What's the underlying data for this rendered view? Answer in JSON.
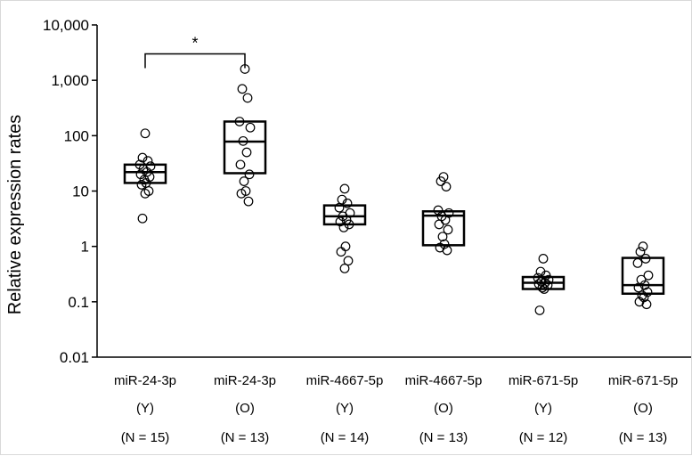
{
  "chart_data": {
    "type": "scatter",
    "subtype": "dot-plot with box (median and interquartile range)",
    "y_scale": "log",
    "ylabel": "Relative expression rates",
    "ylim": [
      0.01,
      10000
    ],
    "y_ticks": [
      {
        "value": 0.01,
        "label": "0.01"
      },
      {
        "value": 0.1,
        "label": "0.1"
      },
      {
        "value": 1,
        "label": "1"
      },
      {
        "value": 10,
        "label": "10"
      },
      {
        "value": 100,
        "label": "100"
      },
      {
        "value": 1000,
        "label": "1,000"
      },
      {
        "value": 10000,
        "label": "10,000"
      }
    ],
    "grid": false,
    "categories": [
      {
        "line1": "miR-24-3p",
        "line2": "(Y)",
        "line3": "(N = 15)",
        "box": {
          "q1": 14,
          "median": 22,
          "q3": 30
        },
        "points": [
          110,
          40,
          35,
          30,
          28,
          25,
          22,
          20,
          18,
          16,
          14,
          13,
          10,
          9,
          3.2
        ]
      },
      {
        "line1": "miR-24-3p",
        "line2": "(O)",
        "line3": "(N = 13)",
        "box": {
          "q1": 21,
          "median": 78,
          "q3": 180
        },
        "points": [
          1600,
          700,
          480,
          180,
          140,
          80,
          50,
          30,
          20,
          15,
          10,
          9,
          6.5
        ]
      },
      {
        "line1": "miR-4667-5p",
        "line2": "(Y)",
        "line3": "(N = 14)",
        "box": {
          "q1": 2.5,
          "median": 3.5,
          "q3": 5.5
        },
        "points": [
          11,
          7,
          6,
          5,
          4,
          3.5,
          3,
          2.8,
          2.5,
          2.2,
          1,
          0.8,
          0.55,
          0.4
        ]
      },
      {
        "line1": "miR-4667-5p",
        "line2": "(O)",
        "line3": "(N = 13)",
        "box": {
          "q1": 1.05,
          "median": 3.6,
          "q3": 4.3
        },
        "points": [
          18,
          15,
          12,
          4.5,
          4,
          3.5,
          3,
          2.5,
          2,
          1.5,
          1.1,
          0.95,
          0.85
        ]
      },
      {
        "line1": "miR-671-5p",
        "line2": "(Y)",
        "line3": "(N = 12)",
        "box": {
          "q1": 0.17,
          "median": 0.22,
          "q3": 0.28
        },
        "points": [
          0.6,
          0.35,
          0.3,
          0.27,
          0.25,
          0.23,
          0.22,
          0.21,
          0.2,
          0.18,
          0.17,
          0.07
        ]
      },
      {
        "line1": "miR-671-5p",
        "line2": "(O)",
        "line3": "(N = 13)",
        "box": {
          "q1": 0.14,
          "median": 0.2,
          "q3": 0.62
        },
        "points": [
          1.0,
          0.8,
          0.6,
          0.5,
          0.3,
          0.25,
          0.2,
          0.18,
          0.15,
          0.13,
          0.12,
          0.1,
          0.09
        ]
      }
    ],
    "annotations": [
      {
        "type": "significance-bracket",
        "between": [
          0,
          1
        ],
        "y_value": 3000,
        "text": "*"
      }
    ]
  }
}
